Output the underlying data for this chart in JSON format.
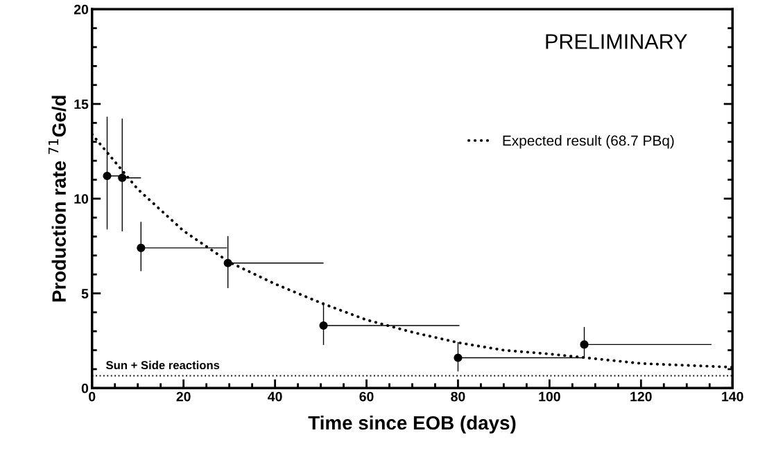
{
  "chart_data": {
    "type": "scatter",
    "xlabel": "Time since EOB (days)",
    "ylabel": "Production rate $^{71}$Ge/d",
    "xlim": [
      0,
      140
    ],
    "xticks": [
      0,
      20,
      40,
      60,
      80,
      100,
      120,
      140
    ],
    "ylim": [
      0,
      20
    ],
    "yticks": [
      0,
      5,
      10,
      15,
      20
    ],
    "grid": false,
    "legend": "right",
    "series": [
      {
        "type": "scatter",
        "color": "#000000",
        "marker": "circle",
        "x": [
          3.3,
          6.6,
          10.7,
          29.7,
          50.6,
          80.0,
          107.6
        ],
        "values": [
          11.2,
          11.1,
          7.4,
          6.6,
          3.3,
          1.6,
          2.3
        ],
        "errors": [
          [
            8.4,
            14.3
          ],
          [
            8.3,
            14.2
          ],
          [
            6.2,
            8.75
          ],
          [
            5.3,
            8.0
          ],
          [
            2.3,
            4.5
          ],
          [
            0.9,
            2.4
          ],
          [
            1.6,
            3.2
          ]
        ],
        "xerrors": [
          [
            3.3,
            6.6
          ],
          [
            6.6,
            10.6
          ],
          [
            10.7,
            29.4
          ],
          [
            29.7,
            50.5
          ],
          [
            50.6,
            80.2
          ],
          [
            80.0,
            107.6
          ],
          [
            107.6,
            135.3
          ]
        ]
      },
      {
        "type": "line",
        "name": "Expected result (68.7 PBq)",
        "color": "#000000",
        "marker": "none",
        "line_style": "dotted",
        "x": [
          0,
          10,
          20,
          30,
          40,
          50,
          60,
          70,
          80,
          90,
          100,
          110,
          120,
          130,
          140
        ],
        "values": [
          13.4,
          10.5,
          8.3,
          6.65,
          5.5,
          4.5,
          3.6,
          2.95,
          2.4,
          2.0,
          1.8,
          1.55,
          1.3,
          1.2,
          1.1
        ]
      }
    ],
    "ref_lines": [
      {
        "axis": "y",
        "value": 0.65,
        "label": "Sun + Side reactions",
        "color": "#000000",
        "line_style": "dotted"
      }
    ],
    "annotations": [
      "PRELIMINARY"
    ]
  }
}
